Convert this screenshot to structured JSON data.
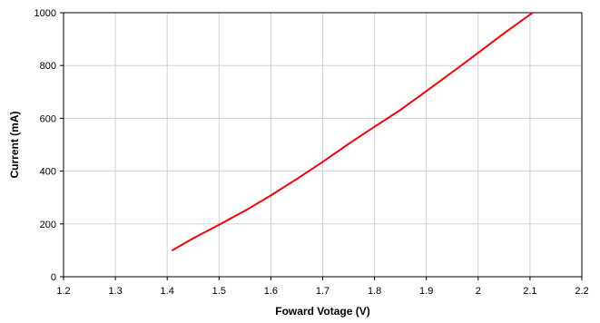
{
  "chart_data": {
    "type": "line",
    "title": "",
    "xlabel": "Foward Votage (V)",
    "ylabel": "Current  (mA)",
    "xlim": [
      1.2,
      2.2
    ],
    "ylim": [
      0,
      1000
    ],
    "x_ticks": [
      "1.2",
      "1.3",
      "1.4",
      "1.5",
      "1.6",
      "1.7",
      "1.8",
      "1.9",
      "2",
      "2.1",
      "2.2"
    ],
    "y_ticks": [
      "0",
      "200",
      "400",
      "600",
      "800",
      "1000"
    ],
    "grid": true,
    "legend": "none",
    "series": [
      {
        "color": "#ff0000",
        "x": [
          1.41,
          1.45,
          1.5,
          1.55,
          1.6,
          1.65,
          1.7,
          1.75,
          1.8,
          1.85,
          1.9,
          1.95,
          2.0,
          2.05,
          2.105
        ],
        "y": [
          100,
          145,
          197,
          250,
          308,
          370,
          435,
          503,
          568,
          632,
          703,
          775,
          848,
          922,
          1000
        ]
      }
    ]
  }
}
